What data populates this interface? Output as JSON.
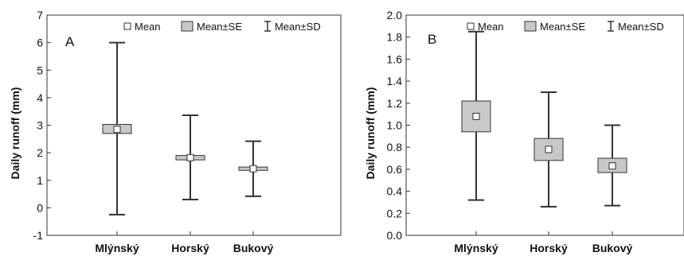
{
  "chart_data": [
    {
      "type": "box",
      "panel_label": "A",
      "ylabel": "Daily runoff (mm)",
      "ylim": [
        -1,
        7
      ],
      "yticks": [
        "-1",
        "0",
        "1",
        "2",
        "3",
        "4",
        "5",
        "6",
        "7"
      ],
      "legend": {
        "mean": "Mean",
        "se": "Mean±SE",
        "sd": "Mean±SD",
        "placement": "top-right"
      },
      "categories": [
        "Mlýnský",
        "Horský",
        "Bukový"
      ],
      "mean": [
        2.85,
        1.82,
        1.42
      ],
      "se_low": [
        2.7,
        1.74,
        1.36
      ],
      "se_high": [
        3.03,
        1.9,
        1.48
      ],
      "sd_low": [
        -0.25,
        0.3,
        0.42
      ],
      "sd_high": [
        6.0,
        3.36,
        2.42
      ],
      "grid": false
    },
    {
      "type": "box",
      "panel_label": "B",
      "ylabel": "Daily runoff (mm)",
      "ylim": [
        0,
        2.0
      ],
      "yticks": [
        "0.0",
        "0.2",
        "0.4",
        "0.6",
        "0.8",
        "1.0",
        "1.2",
        "1.4",
        "1.6",
        "1.8",
        "2.0"
      ],
      "legend": {
        "mean": "Mean",
        "se": "Mean±SE",
        "sd": "Mean±SD",
        "placement": "top-right"
      },
      "categories": [
        "Mlýnský",
        "Horský",
        "Bukový"
      ],
      "mean": [
        1.08,
        0.78,
        0.63
      ],
      "se_low": [
        0.94,
        0.68,
        0.57
      ],
      "se_high": [
        1.22,
        0.88,
        0.7
      ],
      "sd_low": [
        0.32,
        0.26,
        0.27
      ],
      "sd_high": [
        1.85,
        1.3,
        1.0
      ],
      "grid": false
    }
  ]
}
